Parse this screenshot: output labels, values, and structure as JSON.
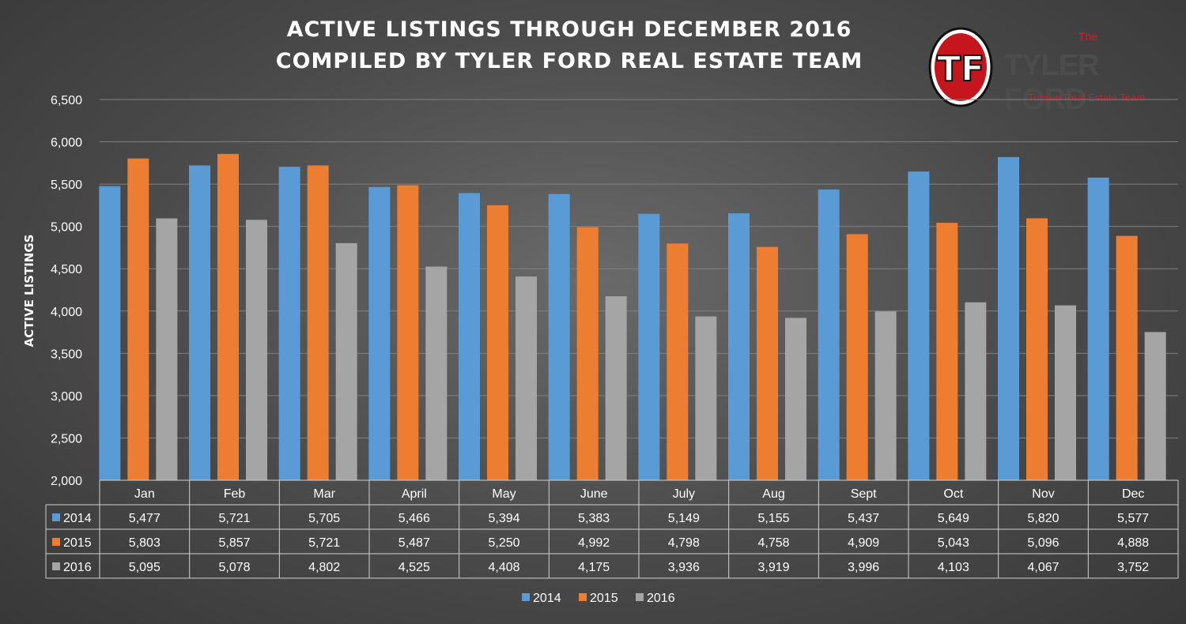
{
  "title": {
    "line1": "ACTIVE LISTINGS THROUGH DECEMBER 2016",
    "line2": "COMPILED BY TYLER FORD REAL ESTATE TEAM"
  },
  "logo": {
    "badge": "TF",
    "the": "The",
    "name": "TYLER FORD",
    "tagline": "Tucson Real Estate Team"
  },
  "chart_data": {
    "type": "bar",
    "title": "ACTIVE LISTINGS THROUGH DECEMBER 2016",
    "subtitle": "COMPILED BY TYLER FORD REAL ESTATE TEAM",
    "xlabel": "",
    "ylabel": "ACTIVE LISTINGS",
    "ylim": [
      2000,
      6500
    ],
    "yticks": [
      2000,
      2500,
      3000,
      3500,
      4000,
      4500,
      5000,
      5500,
      6000,
      6500
    ],
    "ytick_labels": [
      "2,000",
      "2,500",
      "3,000",
      "3,500",
      "4,000",
      "4,500",
      "5,000",
      "5,500",
      "6,000",
      "6,500"
    ],
    "grid": true,
    "legend": "bottom",
    "data_table": true,
    "categories": [
      "Jan",
      "Feb",
      "Mar",
      "April",
      "May",
      "June",
      "July",
      "Aug",
      "Sept",
      "Oct",
      "Nov",
      "Dec"
    ],
    "series": [
      {
        "name": "2014",
        "color": "#5b9bd5",
        "values": [
          5477,
          5721,
          5705,
          5466,
          5394,
          5383,
          5149,
          5155,
          5437,
          5649,
          5820,
          5577
        ],
        "labels": [
          "5,477",
          "5,721",
          "5,705",
          "5,466",
          "5,394",
          "5,383",
          "5,149",
          "5,155",
          "5,437",
          "5,649",
          "5,820",
          "5,577"
        ]
      },
      {
        "name": "2015",
        "color": "#ed7d31",
        "values": [
          5803,
          5857,
          5721,
          5487,
          5250,
          4992,
          4798,
          4758,
          4909,
          5043,
          5096,
          4888
        ],
        "labels": [
          "5,803",
          "5,857",
          "5,721",
          "5,487",
          "5,250",
          "4,992",
          "4,798",
          "4,758",
          "4,909",
          "5,043",
          "5,096",
          "4,888"
        ]
      },
      {
        "name": "2016",
        "color": "#a5a5a5",
        "values": [
          5095,
          5078,
          4802,
          4525,
          4408,
          4175,
          3936,
          3919,
          3996,
          4103,
          4067,
          3752
        ],
        "labels": [
          "5,095",
          "5,078",
          "4,802",
          "4,525",
          "4,408",
          "4,175",
          "3,936",
          "3,919",
          "3,996",
          "4,103",
          "4,067",
          "3,752"
        ]
      }
    ]
  }
}
